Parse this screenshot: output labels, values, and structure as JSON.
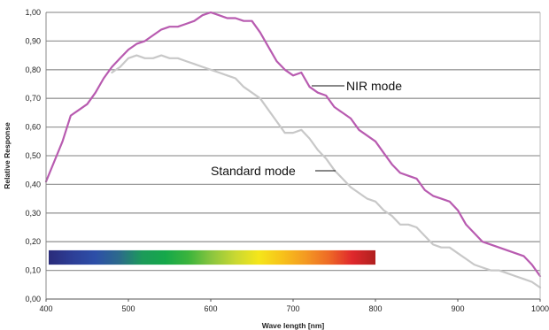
{
  "chart_data": {
    "type": "line",
    "xlabel": "Wave length [nm]",
    "ylabel": "Relative Response",
    "xlim": [
      400,
      1000
    ],
    "ylim": [
      0,
      1
    ],
    "xticks": [
      "400",
      "500",
      "600",
      "700",
      "800",
      "900",
      "1000"
    ],
    "yticks": [
      "0,00",
      "0,10",
      "0,20",
      "0,30",
      "0,40",
      "0,50",
      "0,60",
      "0,70",
      "0,80",
      "0,90",
      "1,00"
    ],
    "grid": "horizontal",
    "annotations": [
      {
        "text": "NIR mode",
        "series": "NIR mode"
      },
      {
        "text": "Standard mode",
        "series": "Standard mode"
      }
    ],
    "series": [
      {
        "name": "NIR mode",
        "color": "#b85bb0",
        "x": [
          400,
          410,
          420,
          430,
          440,
          450,
          460,
          470,
          480,
          490,
          500,
          510,
          520,
          530,
          540,
          550,
          560,
          570,
          580,
          590,
          600,
          610,
          620,
          630,
          640,
          650,
          660,
          670,
          680,
          690,
          700,
          710,
          720,
          730,
          740,
          750,
          760,
          770,
          780,
          790,
          800,
          810,
          820,
          830,
          840,
          850,
          860,
          870,
          880,
          890,
          900,
          910,
          920,
          930,
          940,
          950,
          960,
          970,
          980,
          990,
          1000
        ],
        "values": [
          0.41,
          0.48,
          0.55,
          0.64,
          0.66,
          0.68,
          0.72,
          0.77,
          0.81,
          0.84,
          0.87,
          0.89,
          0.9,
          0.92,
          0.94,
          0.95,
          0.95,
          0.96,
          0.97,
          0.99,
          1.0,
          0.99,
          0.98,
          0.98,
          0.97,
          0.97,
          0.93,
          0.88,
          0.83,
          0.8,
          0.78,
          0.79,
          0.74,
          0.72,
          0.71,
          0.67,
          0.65,
          0.63,
          0.59,
          0.57,
          0.55,
          0.51,
          0.47,
          0.44,
          0.43,
          0.42,
          0.38,
          0.36,
          0.35,
          0.34,
          0.31,
          0.26,
          0.23,
          0.2,
          0.19,
          0.18,
          0.17,
          0.16,
          0.15,
          0.12,
          0.08
        ]
      },
      {
        "name": "Standard mode",
        "color": "#c8c8c8",
        "x": [
          480,
          490,
          500,
          510,
          520,
          530,
          540,
          550,
          560,
          570,
          580,
          590,
          600,
          610,
          620,
          630,
          640,
          650,
          660,
          670,
          680,
          690,
          700,
          710,
          720,
          730,
          740,
          750,
          760,
          770,
          780,
          790,
          800,
          810,
          820,
          830,
          840,
          850,
          860,
          870,
          880,
          890,
          900,
          910,
          920,
          930,
          940,
          950,
          960,
          970,
          980,
          990,
          1000
        ],
        "values": [
          0.79,
          0.81,
          0.84,
          0.85,
          0.84,
          0.84,
          0.85,
          0.84,
          0.84,
          0.83,
          0.82,
          0.81,
          0.8,
          0.79,
          0.78,
          0.77,
          0.74,
          0.72,
          0.7,
          0.66,
          0.62,
          0.58,
          0.58,
          0.59,
          0.56,
          0.52,
          0.49,
          0.45,
          0.42,
          0.39,
          0.37,
          0.35,
          0.34,
          0.31,
          0.29,
          0.26,
          0.26,
          0.25,
          0.22,
          0.19,
          0.18,
          0.18,
          0.16,
          0.14,
          0.12,
          0.11,
          0.1,
          0.1,
          0.09,
          0.08,
          0.07,
          0.06,
          0.04
        ]
      }
    ],
    "spectrum_bar": {
      "x_range": [
        400,
        800
      ],
      "value_range": [
        0.12,
        0.17
      ],
      "colors": [
        "#2a2b7a",
        "#2d3e96",
        "#2d4fa8",
        "#2c6a8c",
        "#1c9a5a",
        "#15a84a",
        "#3cb43c",
        "#8cc63f",
        "#c9d832",
        "#f5e61a",
        "#f7c21a",
        "#f49a22",
        "#ee6a26",
        "#e0282c",
        "#b0201f"
      ]
    }
  }
}
